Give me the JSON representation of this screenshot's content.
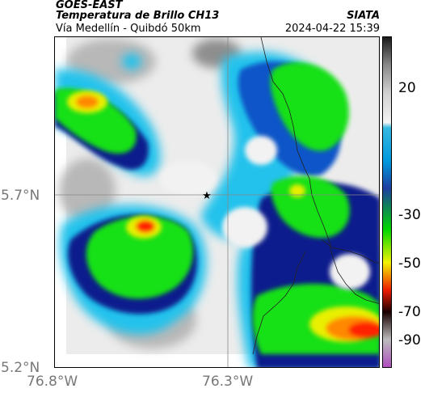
{
  "header": {
    "satellite": "GOES-EAST",
    "product": "Temperatura de Brillo CH13",
    "org": "SIATA",
    "subtitle": "Vía Medellín - Quibdó 50km",
    "datetime": "2024-04-22 15:39"
  },
  "axes": {
    "lat_labels": [
      "5.7°N",
      "5.2°N"
    ],
    "lon_labels": [
      "76.8°W",
      "76.3°W"
    ]
  },
  "colorbar": {
    "ticks": [
      "20",
      "-30",
      "-50",
      "-70",
      "-90"
    ],
    "stops": [
      {
        "value": 30,
        "color": "#1a1a1a"
      },
      {
        "value": 20,
        "color": "#888888"
      },
      {
        "value": 10,
        "color": "#cfcfcf"
      },
      {
        "value": -1,
        "color": "#f4f4f4"
      },
      {
        "value": -3,
        "color": "#36b8e0"
      },
      {
        "value": -15,
        "color": "#0099dd"
      },
      {
        "value": -25,
        "color": "#1e3fa0"
      },
      {
        "value": -40,
        "color": "#00d700"
      },
      {
        "value": -52,
        "color": "#f2f200"
      },
      {
        "value": -62,
        "color": "#ee1c00"
      },
      {
        "value": -70,
        "color": "#1a0000"
      },
      {
        "value": -80,
        "color": "#bbbbbb"
      },
      {
        "value": -90,
        "color": "#b04fbf"
      }
    ]
  },
  "colors": {
    "background": "#ececec",
    "gray": "#b8b8b8",
    "darkgray": "#8e8e8e",
    "cyan": "#22c2ec",
    "blue": "#0a55c8",
    "navy": "#0a1a8c",
    "green": "#18e018",
    "yellow": "#e8f000",
    "orange": "#ff8800",
    "red": "#ff2000"
  },
  "marker": {
    "symbol": "★"
  }
}
